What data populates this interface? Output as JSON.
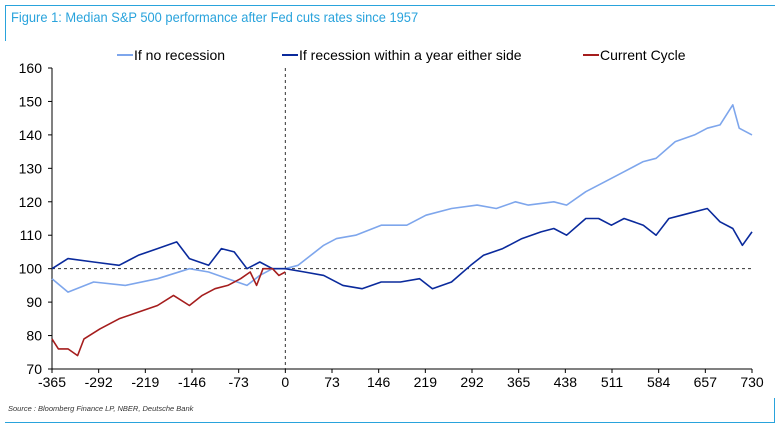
{
  "title": "Figure 1: Median S&P 500 performance after Fed cuts rates since 1957",
  "source": "Source : Bloomberg Finance LP, NBER, Deutsche Bank",
  "chart_data": {
    "type": "line",
    "title": "Figure 1: Median S&P 500 performance after Fed cuts rates since 1957",
    "xlim": [
      -365,
      730
    ],
    "ylim": [
      70,
      160
    ],
    "x_ticks": [
      -365,
      -292,
      -219,
      -146,
      -73,
      0,
      73,
      146,
      219,
      292,
      365,
      438,
      511,
      584,
      657,
      730
    ],
    "y_ticks": [
      70,
      80,
      90,
      100,
      110,
      120,
      130,
      140,
      150,
      160
    ],
    "reference_lines": {
      "horizontal_y": 100,
      "vertical_x": 0
    },
    "legend_position": "top",
    "grid": false,
    "series": [
      {
        "name": "If no recession",
        "color": "#7ea6ec",
        "x": [
          -365,
          -340,
          -300,
          -250,
          -200,
          -150,
          -120,
          -90,
          -60,
          -40,
          -20,
          0,
          20,
          40,
          60,
          80,
          110,
          150,
          190,
          220,
          260,
          300,
          330,
          360,
          380,
          420,
          440,
          470,
          500,
          530,
          560,
          580,
          610,
          640,
          660,
          680,
          700,
          710,
          730
        ],
        "y": [
          97,
          93,
          96,
          95,
          97,
          100,
          99,
          97,
          95,
          98,
          100,
          100,
          101,
          104,
          107,
          109,
          110,
          113,
          113,
          116,
          118,
          119,
          118,
          120,
          119,
          120,
          119,
          123,
          126,
          129,
          132,
          133,
          138,
          140,
          142,
          143,
          149,
          142,
          140
        ]
      },
      {
        "name": "If recession within a year either side",
        "color": "#0a2a9c",
        "x": [
          -365,
          -340,
          -300,
          -260,
          -230,
          -200,
          -170,
          -150,
          -120,
          -100,
          -80,
          -60,
          -40,
          -20,
          0,
          30,
          60,
          90,
          120,
          150,
          180,
          210,
          230,
          260,
          290,
          310,
          340,
          370,
          400,
          420,
          440,
          470,
          490,
          510,
          530,
          560,
          580,
          600,
          620,
          660,
          680,
          700,
          715,
          730
        ],
        "y": [
          100,
          103,
          102,
          101,
          104,
          106,
          108,
          103,
          101,
          106,
          105,
          100,
          102,
          100,
          100,
          99,
          98,
          95,
          94,
          96,
          96,
          97,
          94,
          96,
          101,
          104,
          106,
          109,
          111,
          112,
          110,
          115,
          115,
          113,
          115,
          113,
          110,
          115,
          116,
          118,
          114,
          112,
          107,
          111
        ]
      },
      {
        "name": "Current Cycle",
        "color": "#a51d1d",
        "x": [
          -365,
          -355,
          -340,
          -325,
          -315,
          -290,
          -260,
          -230,
          -200,
          -175,
          -150,
          -130,
          -110,
          -90,
          -70,
          -55,
          -45,
          -35,
          -20,
          -10,
          0
        ],
        "y": [
          79,
          76,
          76,
          74,
          79,
          82,
          85,
          87,
          89,
          92,
          89,
          92,
          94,
          95,
          97,
          99,
          95,
          100,
          100,
          98,
          99
        ]
      }
    ]
  }
}
